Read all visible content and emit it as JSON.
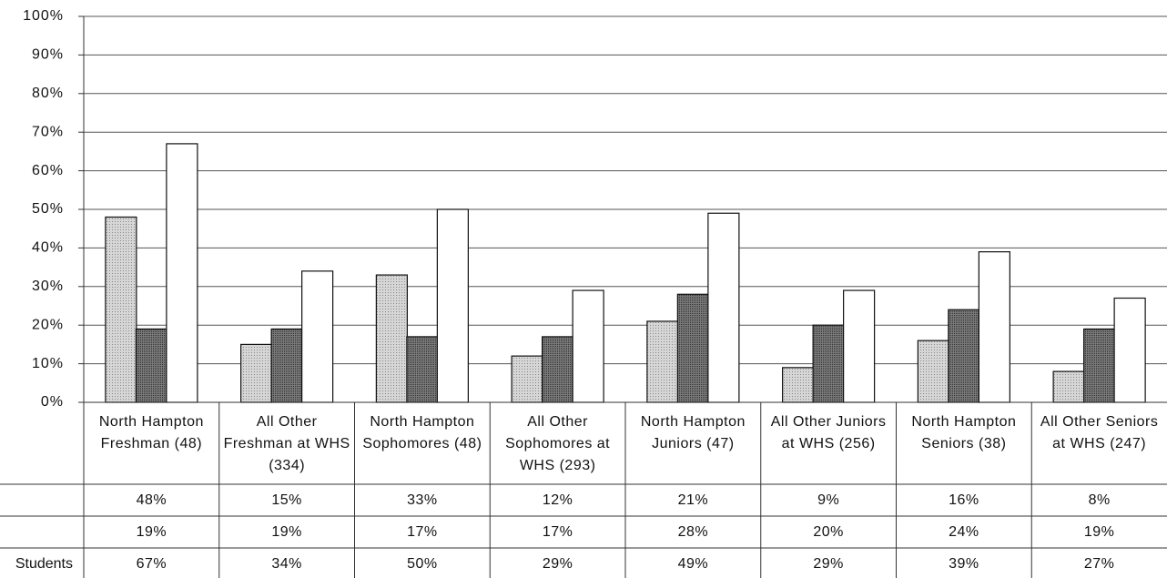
{
  "chart_data": {
    "type": "bar",
    "categories": [
      "North Hampton Freshman (48)",
      "All Other Freshman at WHS (334)",
      "North Hampton Sophomores (48)",
      "All Other Sophomores at WHS (293)",
      "North Hampton Juniors (47)",
      "All Other Juniors at WHS (256)",
      "North Hampton Seniors (38)",
      "All Other Seniors at WHS (247)"
    ],
    "series": [
      {
        "color": "#c4c4c4",
        "values": [
          48,
          15,
          33,
          12,
          21,
          9,
          16,
          8
        ],
        "value_labels": [
          "48%",
          "15%",
          "33%",
          "12%",
          "21%",
          "9%",
          "16%",
          "8%"
        ]
      },
      {
        "color": "#6e6e6e",
        "values": [
          19,
          19,
          17,
          17,
          28,
          20,
          24,
          19
        ],
        "value_labels": [
          "19%",
          "19%",
          "17%",
          "17%",
          "28%",
          "20%",
          "24%",
          "19%"
        ]
      },
      {
        "name": "Students",
        "color": "#ffffff",
        "values": [
          67,
          34,
          50,
          29,
          49,
          29,
          39,
          27
        ],
        "value_labels": [
          "67%",
          "34%",
          "50%",
          "29%",
          "49%",
          "29%",
          "39%",
          "27%"
        ]
      }
    ],
    "ylim": [
      0,
      100
    ],
    "yticks": [
      {
        "value": 0,
        "label": "0%"
      },
      {
        "value": 10,
        "label": "10%"
      },
      {
        "value": 20,
        "label": "20%"
      },
      {
        "value": 30,
        "label": "30%"
      },
      {
        "value": 40,
        "label": "40%"
      },
      {
        "value": 50,
        "label": "50%"
      },
      {
        "value": 60,
        "label": "60%"
      },
      {
        "value": 70,
        "label": "70%"
      },
      {
        "value": 80,
        "label": "80%"
      },
      {
        "value": 90,
        "label": "90%"
      },
      {
        "value": 100,
        "label": "100%"
      }
    ],
    "grid": true
  }
}
